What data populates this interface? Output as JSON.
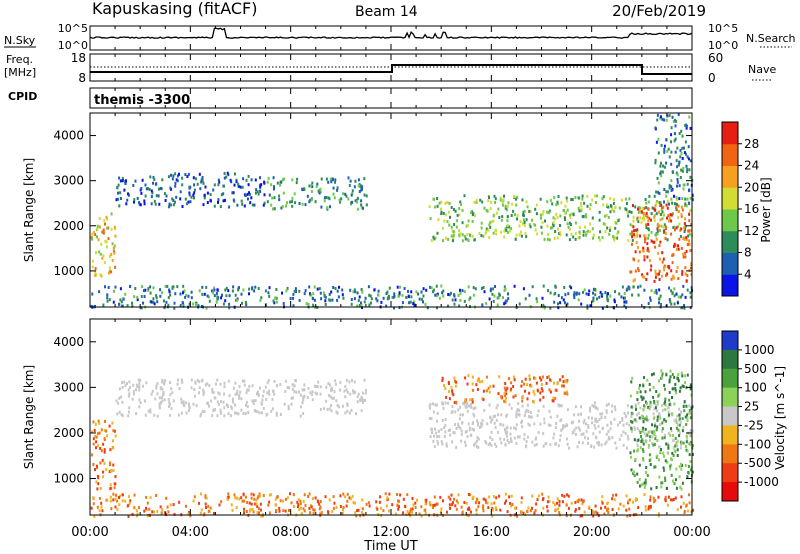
{
  "header": {
    "station": "Kapuskasing (fitACF)",
    "beam": "Beam 14",
    "date": "20/Feb/2019"
  },
  "noise_panel": {
    "left_label": "N.Sky",
    "left_ticks": [
      "10^5",
      "10^0"
    ],
    "right_ticks": [
      "10^5",
      "10^0"
    ],
    "right_label": "N.Search"
  },
  "freq_panel": {
    "left_label_1": "Freq.",
    "left_label_2": "[MHz]",
    "left_ticks": [
      "18",
      "8"
    ],
    "right_ticks": [
      "60",
      "0"
    ],
    "right_label": "Nave"
  },
  "cpid_panel": {
    "left_label": "CPID",
    "program": "themis -3300"
  },
  "time_axis": {
    "label": "Time UT",
    "ticks": [
      "00:00",
      "04:00",
      "08:00",
      "12:00",
      "16:00",
      "20:00",
      "00:00"
    ]
  },
  "colors": {
    "power_scale": [
      "#0a14e6",
      "#1e5fb4",
      "#2d8c5a",
      "#6ec84b",
      "#d2dc32",
      "#f5a01e",
      "#f06414",
      "#e61e14"
    ],
    "velocity_scale": [
      "#1e3cc8",
      "#2d7840",
      "#4aa23c",
      "#8cd25a",
      "#c8c8c8",
      "#f0b41e",
      "#f07814",
      "#f03c14",
      "#e60a0a"
    ],
    "ground_scatter": "#c8c8c8"
  },
  "chart_data": [
    {
      "type": "heatmap",
      "title": "",
      "parameter": "Power",
      "xlabel": "Time UT",
      "ylabel": "Slant Range [km]",
      "xlim": [
        0,
        24
      ],
      "ylim": [
        200,
        4500
      ],
      "yticks": [
        "4000",
        "3000",
        "2000",
        "1000"
      ],
      "colorbar": {
        "label": "Power [dB]",
        "range": [
          0,
          32
        ],
        "ticks": [
          "28",
          "24",
          "20",
          "16",
          "12",
          "8",
          "4"
        ]
      },
      "series": [
        {
          "x": [
            0.0,
            1.0
          ],
          "y": [
            900,
            2300
          ],
          "level": 20
        },
        {
          "x": [
            1.0,
            7.0
          ],
          "y": [
            2450,
            3200
          ],
          "level": 6
        },
        {
          "x": [
            7.0,
            11.0
          ],
          "y": [
            2400,
            3100
          ],
          "level": 10
        },
        {
          "x": [
            13.5,
            24.0
          ],
          "y": [
            1700,
            2700
          ],
          "level": 14
        },
        {
          "x": [
            21.5,
            24.0
          ],
          "y": [
            800,
            2500
          ],
          "level": 26
        },
        {
          "x": [
            22.5,
            24.0
          ],
          "y": [
            2500,
            4500
          ],
          "level": 8
        },
        {
          "x": [
            0.0,
            24.0
          ],
          "y": [
            200,
            700
          ],
          "level": 8
        }
      ]
    },
    {
      "type": "heatmap",
      "title": "",
      "parameter": "Velocity",
      "xlabel": "Time UT",
      "ylabel": "Slant Range [km]",
      "xlim": [
        0,
        24
      ],
      "ylim": [
        200,
        4500
      ],
      "yticks": [
        "4000",
        "3000",
        "2000",
        "1000"
      ],
      "colorbar": {
        "label": "Velocity [m s^-1]",
        "ticks": [
          "1000",
          "500",
          "100",
          "25",
          "-25",
          "-100",
          "-500",
          "-1000"
        ]
      },
      "series": [
        {
          "x": [
            0.0,
            1.0
          ],
          "y": [
            800,
            2300
          ],
          "level": "-100"
        },
        {
          "x": [
            1.0,
            11.0
          ],
          "y": [
            2400,
            3200
          ],
          "level": "ground scatter"
        },
        {
          "x": [
            13.5,
            24.0
          ],
          "y": [
            1700,
            2700
          ],
          "level": "ground scatter"
        },
        {
          "x": [
            14.0,
            19.0
          ],
          "y": [
            2700,
            3300
          ],
          "level": "-100"
        },
        {
          "x": [
            21.5,
            24.0
          ],
          "y": [
            800,
            3400
          ],
          "level": "100"
        },
        {
          "x": [
            0.0,
            24.0
          ],
          "y": [
            200,
            700
          ],
          "level": "-100"
        }
      ]
    }
  ]
}
